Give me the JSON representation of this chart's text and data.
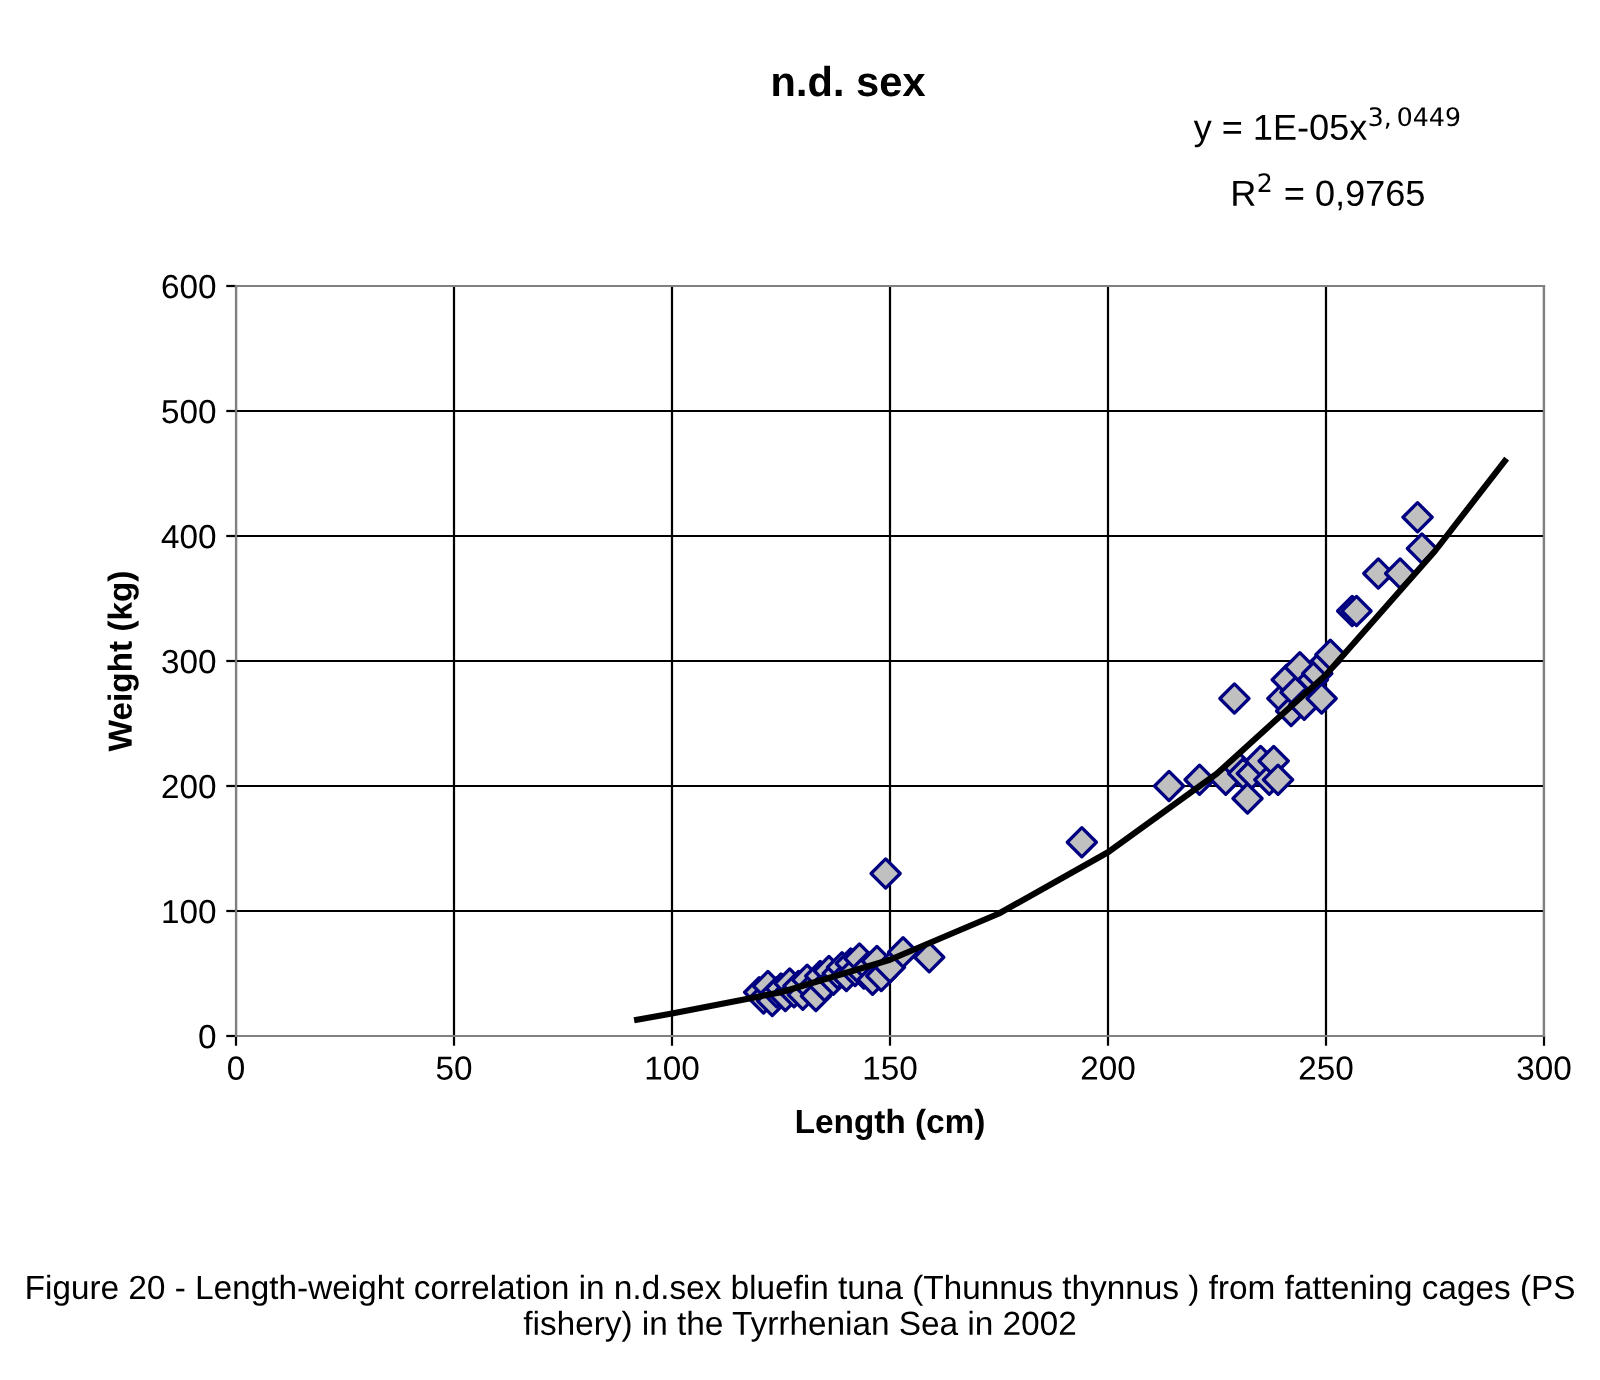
{
  "chart_data": {
    "type": "scatter",
    "title": "n.d. sex",
    "xlabel": "Length (cm)",
    "ylabel": "Weight (kg)",
    "xlim": [
      0,
      300
    ],
    "xticks": [
      0,
      50,
      100,
      150,
      200,
      250,
      300
    ],
    "ylim": [
      0,
      600
    ],
    "yticks": [
      0,
      100,
      200,
      300,
      400,
      500,
      600
    ],
    "grid": true,
    "legend": false,
    "marker": "diamond",
    "series": [
      {
        "color": "#c0c0c0",
        "x": [
          120,
          121,
          122,
          123,
          124,
          125,
          126,
          127,
          128,
          129,
          130,
          131,
          132,
          133,
          134,
          135,
          136,
          137,
          138,
          139,
          140,
          141,
          142,
          143,
          144,
          145,
          146,
          147,
          148,
          149,
          150,
          153,
          159,
          194,
          214,
          221,
          227,
          229,
          230,
          231,
          232,
          233,
          235,
          237,
          238,
          239,
          240,
          241,
          242,
          243,
          244,
          245,
          247,
          248,
          249,
          250,
          251,
          256,
          257,
          262,
          267,
          271,
          272
        ],
        "values": [
          35,
          30,
          40,
          28,
          35,
          38,
          32,
          42,
          35,
          40,
          33,
          45,
          38,
          32,
          48,
          40,
          52,
          45,
          50,
          55,
          48,
          58,
          52,
          62,
          50,
          55,
          45,
          60,
          48,
          130,
          55,
          67,
          63,
          155,
          200,
          205,
          205,
          270,
          215,
          210,
          190,
          210,
          220,
          205,
          220,
          205,
          270,
          285,
          260,
          275,
          295,
          265,
          285,
          290,
          270,
          300,
          305,
          340,
          340,
          370,
          370,
          415,
          390
        ]
      },
      {
        "type": "line",
        "color": "#000000",
        "marker": "none",
        "x": [
          92,
          100,
          125,
          150,
          175,
          200,
          225,
          250,
          275,
          291
        ],
        "values": [
          13,
          18,
          35,
          61,
          98,
          147,
          210,
          289,
          388,
          460
        ]
      }
    ],
    "annotations": [
      "y = 1E-05x$^{3,0449}$",
      "R$^{2}$ = 0,9765",
      "Figure 20 - Length-weight correlation in n.d.sex bluefin tuna (Thunnus thynnus ) from fattening cages (PS fishery) in the Tyrrhenian Sea in 2002"
    ]
  }
}
